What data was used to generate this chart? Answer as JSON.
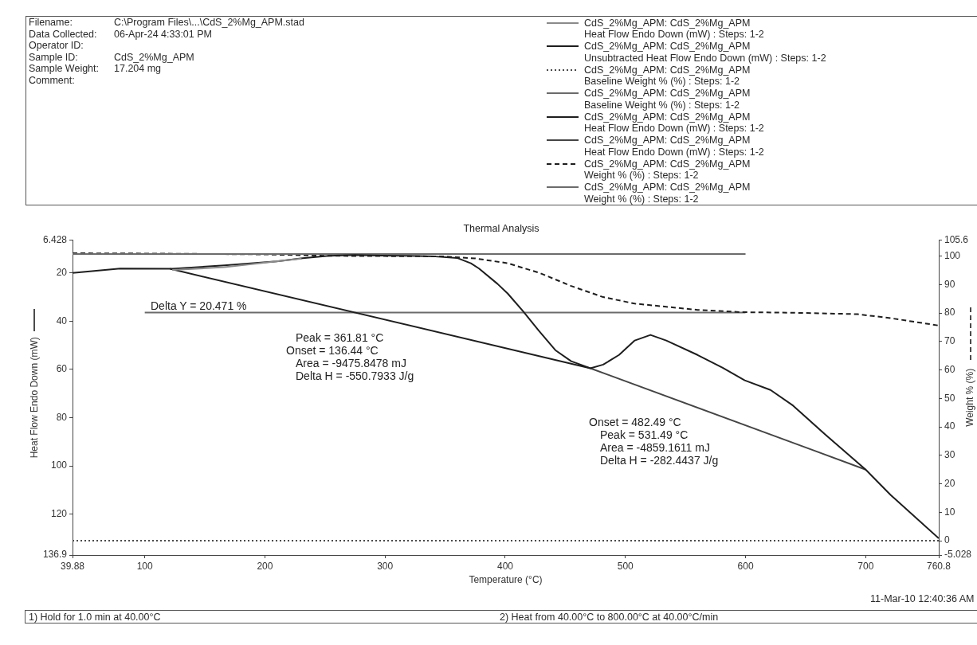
{
  "chart_data": {
    "type": "line",
    "title": "Thermal Analysis",
    "xlabel": "Temperature (°C)",
    "ylabel": "Heat Flow Endo Down (mW)",
    "y2label": "Weight % (%)",
    "xlim": [
      39.88,
      760.8
    ],
    "xticks": [
      39.88,
      100,
      200,
      300,
      400,
      500,
      600,
      700,
      760.8
    ],
    "ylim": [
      136.9,
      6.428
    ],
    "yticks": [
      6.428,
      20,
      40,
      60,
      80,
      100,
      120,
      136.9
    ],
    "y2lim": [
      -5.028,
      105.6
    ],
    "y2ticks": [
      -5.028,
      0,
      10,
      20,
      30,
      40,
      50,
      60,
      70,
      80,
      90,
      100,
      105.6
    ],
    "legend": "top right",
    "series": [
      {
        "name": "CdS_2%Mg_APM: CdS_2%Mg_APM\nHeat Flow Endo Down (mW) : Steps: 1-2",
        "color": "#8a8a8a",
        "line_style": "solid",
        "x": [
          122.9,
          166.2,
          230.5
        ],
        "values": [
          18.8,
          17.6,
          14.1
        ]
      },
      {
        "name": "CdS_2%Mg_APM: CdS_2%Mg_APM\nUnsubtracted Heat Flow Endo Down (mW) : Steps: 1-2",
        "color": "#1e1e1e",
        "line_style": "solid",
        "x": [
          39.88,
          79.5,
          122.9,
          166.2,
          209.6,
          231.4,
          253.2,
          275,
          296.7,
          319,
          341.9,
          359.9,
          371.4,
          378.2,
          393.5,
          402,
          415,
          428,
          441.7,
          454.9,
          470.9,
          481.5,
          494.7,
          507.8,
          520.9,
          534,
          560.1,
          581,
          599.3,
          620.8,
          639.6,
          666.4,
          700,
          720.7,
          760.8
        ],
        "values": [
          20,
          18.2,
          18.3,
          16.9,
          15.2,
          13.9,
          12.9,
          12.6,
          12.8,
          12.9,
          13.2,
          13.8,
          16,
          18.2,
          24.5,
          28.5,
          36,
          44,
          52,
          56.6,
          59.5,
          58,
          54,
          48,
          45.7,
          48,
          54,
          59.3,
          64.5,
          68.5,
          75,
          87,
          101.5,
          112,
          130
        ]
      },
      {
        "name": "CdS_2%Mg_APM: CdS_2%Mg_APM\nBaseline Weight % (%) : Steps: 1-2",
        "color": "#4a4a4a",
        "line_style": "dotted",
        "axis": "y2",
        "x": [
          39.88,
          760.8
        ],
        "values": [
          0,
          0
        ]
      },
      {
        "name": "CdS_2%Mg_APM: CdS_2%Mg_APM\nBaseline Weight % (%) : Steps: 1-2",
        "color": "#6b6b6b",
        "line_style": "solid",
        "axis": "y2",
        "x": [
          39.88,
          600
        ],
        "values": [
          100.7,
          100.7
        ]
      },
      {
        "name": "CdS_2%Mg_APM: CdS_2%Mg_APM\nHeat Flow Endo Down (mW) : Steps: 1-2",
        "color": "#1e1e1e",
        "line_style": "solid",
        "x": [
          121,
          470.9
        ],
        "values": [
          18.3,
          59.5
        ]
      },
      {
        "name": "CdS_2%Mg_APM: CdS_2%Mg_APM\nHeat Flow Endo Down (mW) : Steps: 1-2",
        "color": "#454545",
        "line_style": "solid",
        "x": [
          470.9,
          700
        ],
        "values": [
          59.5,
          101.5
        ]
      },
      {
        "name": "CdS_2%Mg_APM: CdS_2%Mg_APM\nWeight % (%) : Steps: 1-2",
        "color": "#1e1e1e",
        "line_style": "dashed",
        "axis": "y2",
        "x": [
          39.88,
          100,
          200,
          253.2,
          300,
          347.6,
          374.8,
          402,
          428.5,
          454.9,
          481.5,
          507.8,
          534,
          560.1,
          596.7,
          639.6,
          693.3,
          720.7,
          760.8
        ],
        "values": [
          101,
          100.9,
          100.6,
          100.1,
          100,
          99.9,
          99.2,
          97.5,
          94.1,
          89.5,
          85.6,
          83.3,
          82.2,
          81.1,
          80.3,
          80.1,
          79.6,
          78.2,
          75.6
        ]
      },
      {
        "name": "CdS_2%Mg_APM: CdS_2%Mg_APM\nWeight % (%) : Steps: 1-2",
        "color": "#6b6b6b",
        "line_style": "solid",
        "axis": "y2",
        "x": [
          100,
          600
        ],
        "values": [
          80.2,
          80.2
        ]
      }
    ],
    "annotations": [
      "Filename:",
      "C:\\Program Files\\...\\CdS_2%Mg_APM.stad",
      "Data Collected:",
      "06-Apr-24 4:33:01 PM",
      "Operator ID:",
      "Sample ID:",
      "CdS_2%Mg_APM",
      "Sample Weight:",
      "17.204 mg",
      "Comment:",
      "Delta Y = 20.471 %",
      "Peak = 361.81 °C",
      "Onset = 136.44 °C",
      "Area = -9475.8478 mJ",
      "Delta H = -550.7933 J/g",
      "Onset = 482.49 °C",
      "Peak = 531.49 °C",
      "Area = -4859.1611 mJ",
      "Delta H = -282.4437 J/g",
      "11-Mar-10 12:40:36 AM",
      "1) Hold for 1.0 min at 40.00°C",
      "2) Heat from 40.00°C to 800.00°C at 40.00°C/min"
    ]
  }
}
